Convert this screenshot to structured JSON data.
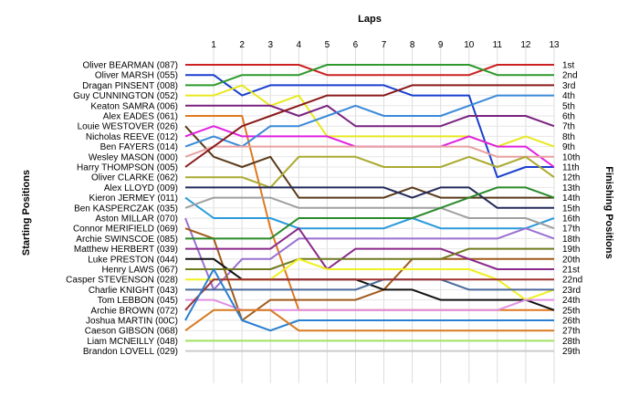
{
  "chart_data": {
    "type": "line",
    "title": "Laps",
    "xlabel": "Laps",
    "ylabel_left": "Starting Positions",
    "ylabel_right": "Finishing Positions",
    "x": [
      0,
      1,
      2,
      3,
      4,
      5,
      6,
      7,
      8,
      9,
      10,
      11,
      12,
      13
    ],
    "lap_tick_labels": [
      "1",
      "2",
      "3",
      "4",
      "5",
      "6",
      "7",
      "8",
      "9",
      "10",
      "11",
      "12",
      "13"
    ],
    "invert_y": true,
    "ylim": [
      1,
      29
    ],
    "grid": true,
    "finishing_labels": [
      "1st",
      "2nd",
      "3rd",
      "4th",
      "5th",
      "6th",
      "7th",
      "8th",
      "9th",
      "10th",
      "11th",
      "12th",
      "13th",
      "14th",
      "15th",
      "16th",
      "17th",
      "18th",
      "19th",
      "20th",
      "21st",
      "22nd",
      "23rd",
      "24th",
      "25th",
      "26th",
      "27th",
      "28th",
      "29th"
    ],
    "series": [
      {
        "name": "Oliver BEARMAN (087)",
        "color": "#cc2222",
        "values": [
          1,
          1,
          1,
          1,
          1,
          2,
          2,
          2,
          2,
          2,
          2,
          1,
          1,
          1
        ]
      },
      {
        "name": "Oliver MARSH (055)",
        "color": "#1a3fd0",
        "values": [
          2,
          2,
          4,
          3,
          3,
          3,
          3,
          3,
          4,
          4,
          4,
          12,
          11,
          11
        ]
      },
      {
        "name": "Dragan PINSENT (008)",
        "color": "#2e9a2e",
        "values": [
          3,
          3,
          2,
          2,
          2,
          1,
          1,
          1,
          1,
          1,
          1,
          2,
          2,
          2
        ]
      },
      {
        "name": "Guy CUNNINGTON (052)",
        "color": "#e8e820",
        "values": [
          4,
          4,
          3,
          5,
          4,
          8,
          8,
          8,
          8,
          8,
          8,
          9,
          8,
          9
        ]
      },
      {
        "name": "Keaton SAMRA (006)",
        "color": "#7a2280",
        "values": [
          5,
          5,
          5,
          5,
          6,
          5,
          7,
          7,
          7,
          7,
          6,
          6,
          6,
          7
        ]
      },
      {
        "name": "Alex EADES (061)",
        "color": "#e07820",
        "values": [
          6,
          6,
          6,
          17,
          25,
          25,
          25,
          25,
          25,
          25,
          25,
          25,
          25,
          25
        ]
      },
      {
        "name": "Louie WESTOVER (026)",
        "color": "#5a3a1a",
        "values": [
          7,
          10,
          11,
          10,
          14,
          14,
          14,
          14,
          13,
          14,
          14,
          14,
          14,
          14
        ]
      },
      {
        "name": "Nicholas REEVE (012)",
        "color": "#e020e0",
        "values": [
          8,
          7,
          8,
          8,
          8,
          8,
          9,
          9,
          9,
          9,
          8,
          9,
          9,
          11
        ]
      },
      {
        "name": "Ben FAYERS (014)",
        "color": "#3a8ad8",
        "values": [
          9,
          8,
          9,
          7,
          7,
          6,
          5,
          6,
          6,
          6,
          5,
          4,
          4,
          4
        ]
      },
      {
        "name": "Wesley MASON (000)",
        "color": "#e8a0a0",
        "values": [
          10,
          9,
          9,
          9,
          9,
          9,
          9,
          9,
          9,
          9,
          9,
          10,
          10,
          10
        ]
      },
      {
        "name": "Harry THOMPSON (005)",
        "color": "#8a1a1a",
        "values": [
          11,
          9,
          7,
          6,
          5,
          4,
          4,
          4,
          3,
          3,
          3,
          3,
          3,
          3
        ]
      },
      {
        "name": "Oliver CLARKE (062)",
        "color": "#aaaa30",
        "values": [
          12,
          12,
          12,
          13,
          10,
          10,
          10,
          11,
          11,
          11,
          10,
          11,
          10,
          12
        ]
      },
      {
        "name": "Alex LLOYD (009)",
        "color": "#232a5a",
        "values": [
          13,
          13,
          13,
          13,
          13,
          13,
          13,
          13,
          14,
          13,
          13,
          15,
          15,
          15
        ]
      },
      {
        "name": "Kieron JERMEY (011)",
        "color": "#2a9ad8",
        "values": [
          14,
          16,
          16,
          16,
          17,
          17,
          17,
          17,
          16,
          17,
          17,
          17,
          17,
          16
        ]
      },
      {
        "name": "Ben KASPERCZAK (035)",
        "color": "#a0a0a0",
        "values": [
          15,
          14,
          14,
          14,
          15,
          15,
          15,
          15,
          15,
          15,
          16,
          16,
          16,
          17
        ]
      },
      {
        "name": "Aston MILLAR (070)",
        "color": "#9a70d0",
        "values": [
          16,
          23,
          20,
          20,
          18,
          18,
          18,
          18,
          18,
          18,
          18,
          18,
          17,
          18
        ]
      },
      {
        "name": "Connor MERIFIELD (069)",
        "color": "#a05a1a",
        "values": [
          17,
          18,
          26,
          24,
          24,
          24,
          24,
          23,
          20,
          20,
          20,
          20,
          20,
          20
        ]
      },
      {
        "name": "Archie SWINSCOE (085)",
        "color": "#2a8a2a",
        "values": [
          18,
          18,
          18,
          18,
          16,
          16,
          16,
          16,
          16,
          15,
          14,
          13,
          13,
          14
        ]
      },
      {
        "name": "Matthew HERBERT (039)",
        "color": "#8a2a8a",
        "values": [
          19,
          19,
          19,
          19,
          17,
          21,
          19,
          19,
          19,
          19,
          20,
          21,
          21,
          21
        ]
      },
      {
        "name": "Luke PRESTON (044)",
        "color": "#111111",
        "values": [
          20,
          20,
          22,
          22,
          22,
          22,
          22,
          23,
          23,
          24,
          24,
          24,
          24,
          25
        ]
      },
      {
        "name": "Henry LAWS (067)",
        "color": "#707a20",
        "values": [
          21,
          21,
          21,
          21,
          20,
          20,
          20,
          20,
          20,
          20,
          19,
          19,
          19,
          19
        ]
      },
      {
        "name": "Casper STEVENSON (028)",
        "color": "#f0f020",
        "values": [
          22,
          22,
          22,
          22,
          20,
          21,
          21,
          21,
          21,
          21,
          21,
          22,
          24,
          23
        ]
      },
      {
        "name": "Charlie KNIGHT (043)",
        "color": "#4a6a9a",
        "values": [
          23,
          23,
          23,
          23,
          23,
          23,
          23,
          22,
          22,
          22,
          23,
          23,
          23,
          23
        ]
      },
      {
        "name": "Tom LEBBON (045)",
        "color": "#e090e0",
        "values": [
          24,
          24,
          25,
          25,
          25,
          25,
          25,
          25,
          25,
          25,
          25,
          25,
          24,
          24
        ]
      },
      {
        "name": "Archie BROWN (072)",
        "color": "#a03030",
        "values": [
          25,
          22,
          22,
          22,
          22,
          22,
          22,
          22,
          22,
          22,
          22,
          22,
          22,
          22
        ]
      },
      {
        "name": "Joshua MARTIN (00C)",
        "color": "#2a80d0",
        "values": [
          26,
          21,
          26,
          27,
          26,
          26,
          26,
          26,
          26,
          26,
          26,
          26,
          26,
          26
        ]
      },
      {
        "name": "Caeson GIBSON (068)",
        "color": "#d87a20",
        "values": [
          27,
          25,
          25,
          25,
          27,
          27,
          27,
          27,
          27,
          27,
          27,
          27,
          27,
          27
        ]
      },
      {
        "name": "Liam MCNEILLY (048)",
        "color": "#a0e060",
        "values": [
          28,
          28,
          28,
          28,
          28,
          28,
          28,
          28,
          28,
          28,
          28,
          28,
          28,
          28
        ]
      },
      {
        "name": "Brandon LOVELL (029)",
        "color": "#cccccc",
        "values": [
          29,
          29,
          29,
          29,
          29,
          29,
          29,
          29,
          29,
          29,
          29,
          29,
          29,
          29
        ]
      }
    ]
  }
}
